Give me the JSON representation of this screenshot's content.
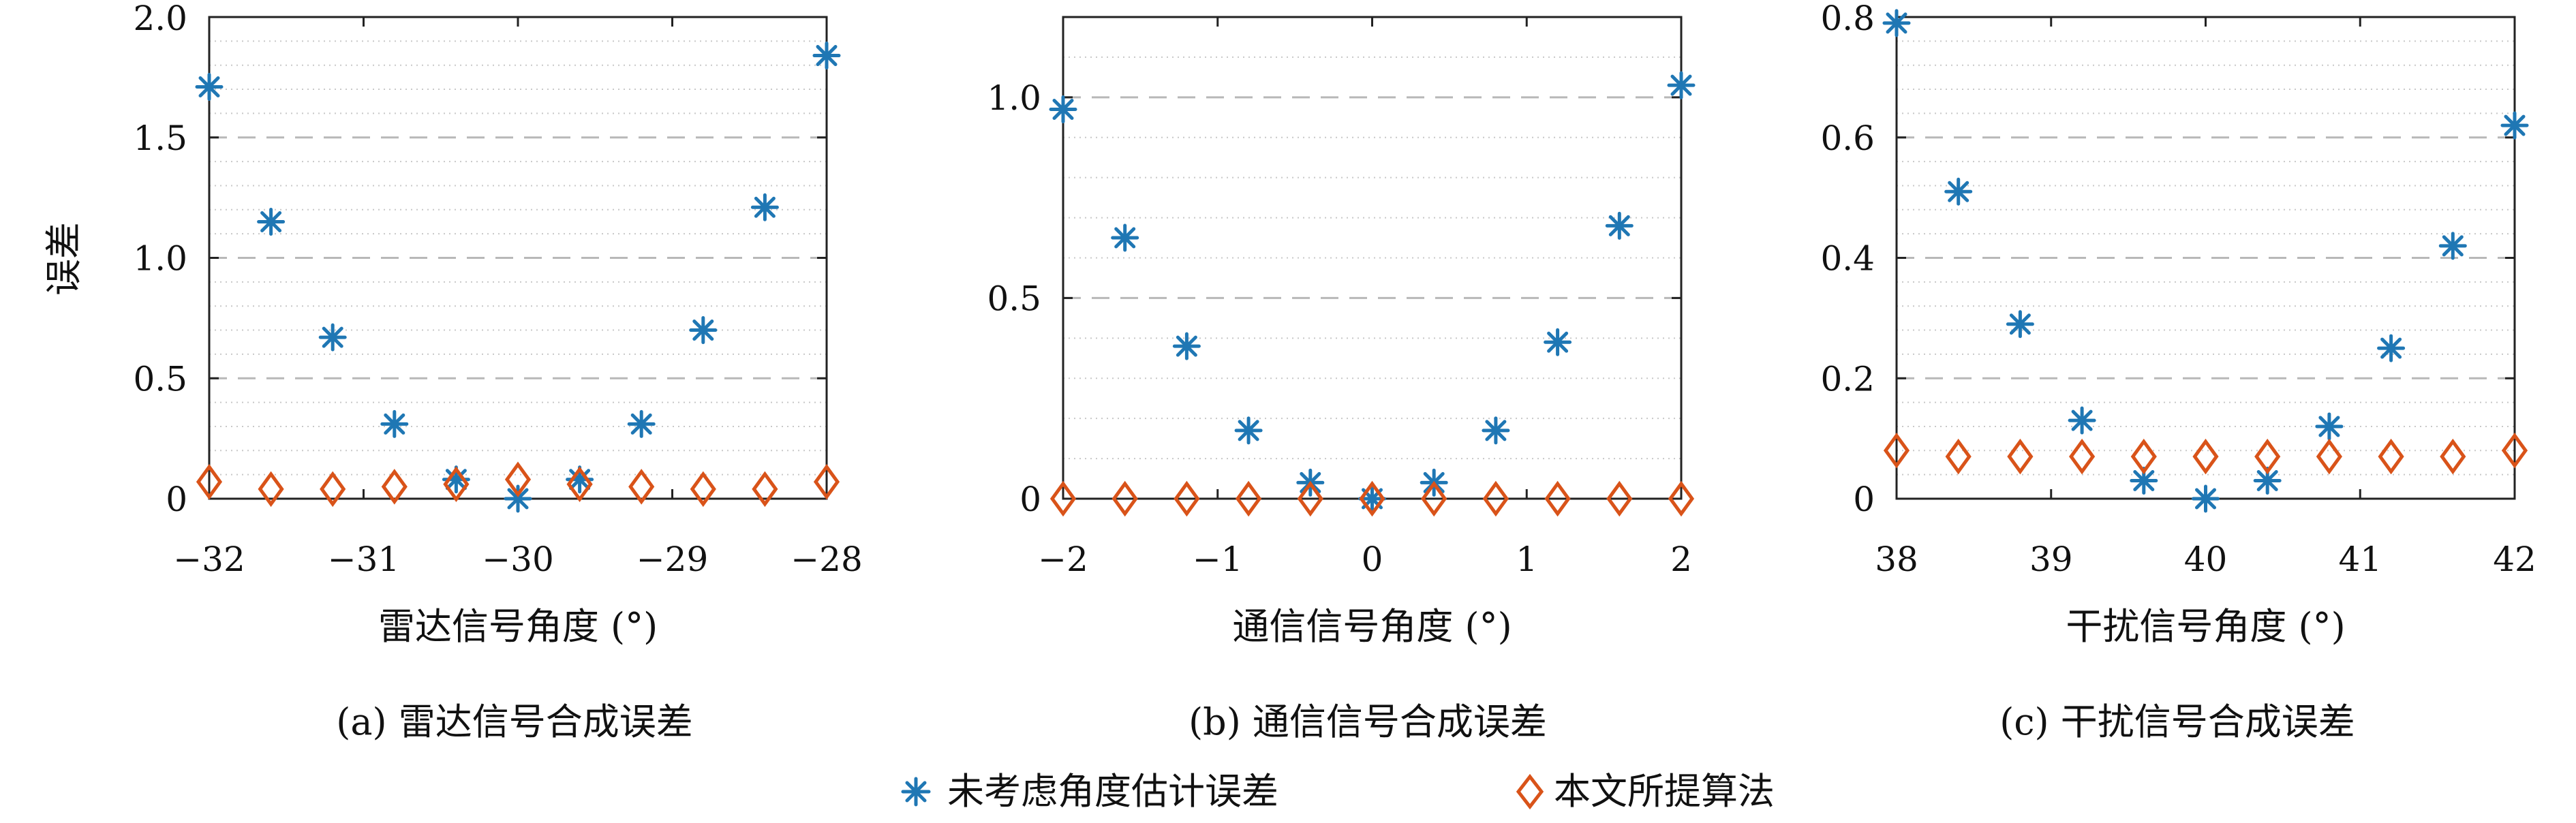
{
  "chart_data": [
    {
      "type": "scatter",
      "caption": "(a) 雷达信号合成误差",
      "xlabel": "雷达信号角度 (°)",
      "ylabel": "误差",
      "xlim": [
        -32,
        -28
      ],
      "ylim": [
        0,
        2.0
      ],
      "xticks": [
        -32,
        -31,
        -30,
        -29,
        -28
      ],
      "xtick_labels": [
        "−32",
        "−31",
        "−30",
        "−29",
        "−28"
      ],
      "yticks": [
        0,
        0.5,
        1.0,
        1.5,
        2.0
      ],
      "ytick_labels": [
        "0",
        "0.5",
        "1.0",
        "1.5",
        "2.0"
      ],
      "major_grid": [
        0.5,
        1.0,
        1.5
      ],
      "minor_grid_step": 0.1,
      "series": [
        {
          "name": "未考虑角度估计误差",
          "marker": "asterisk",
          "color": "#1f77b4",
          "x": [
            -32,
            -31.6,
            -31.2,
            -30.8,
            -30.4,
            -30,
            -29.6,
            -29.2,
            -28.8,
            -28.4,
            -28
          ],
          "y": [
            1.71,
            1.15,
            0.67,
            0.31,
            0.08,
            0.0,
            0.08,
            0.31,
            0.7,
            1.21,
            1.84
          ]
        },
        {
          "name": "本文所提算法",
          "marker": "diamond",
          "color": "#d95319",
          "x": [
            -32,
            -31.6,
            -31.2,
            -30.8,
            -30.4,
            -30,
            -29.6,
            -29.2,
            -28.8,
            -28.4,
            -28
          ],
          "y": [
            0.07,
            0.04,
            0.04,
            0.05,
            0.06,
            0.08,
            0.06,
            0.05,
            0.04,
            0.04,
            0.07
          ]
        }
      ]
    },
    {
      "type": "scatter",
      "caption": "(b) 通信信号合成误差",
      "xlabel": "通信信号角度 (°)",
      "ylabel": "",
      "xlim": [
        -2,
        2
      ],
      "ylim": [
        0,
        1.2
      ],
      "xticks": [
        -2,
        -1,
        0,
        1,
        2
      ],
      "xtick_labels": [
        "−2",
        "−1",
        "0",
        "1",
        "2"
      ],
      "yticks": [
        0,
        0.5,
        1.0
      ],
      "ytick_labels": [
        "0",
        "0.5",
        "1.0"
      ],
      "major_grid": [
        0.5,
        1.0
      ],
      "minor_grid_step": 0.1,
      "series": [
        {
          "name": "未考虑角度估计误差",
          "marker": "asterisk",
          "color": "#1f77b4",
          "x": [
            -2,
            -1.6,
            -1.2,
            -0.8,
            -0.4,
            0,
            0.4,
            0.8,
            1.2,
            1.6,
            2
          ],
          "y": [
            0.97,
            0.65,
            0.38,
            0.17,
            0.04,
            0.0,
            0.04,
            0.17,
            0.39,
            0.68,
            1.03
          ]
        },
        {
          "name": "本文所提算法",
          "marker": "diamond",
          "color": "#d95319",
          "x": [
            -2,
            -1.6,
            -1.2,
            -0.8,
            -0.4,
            0,
            0.4,
            0.8,
            1.2,
            1.6,
            2
          ],
          "y": [
            0.0,
            0.0,
            0.0,
            0.0,
            0.0,
            0.0,
            0.0,
            0.0,
            0.0,
            0.0,
            0.0
          ]
        }
      ]
    },
    {
      "type": "scatter",
      "caption": "(c) 干扰信号合成误差",
      "xlabel": "干扰信号角度 (°)",
      "ylabel": "",
      "xlim": [
        38,
        42
      ],
      "ylim": [
        0,
        0.8
      ],
      "xticks": [
        38,
        39,
        40,
        41,
        42
      ],
      "xtick_labels": [
        "38",
        "39",
        "40",
        "41",
        "42"
      ],
      "yticks": [
        0,
        0.2,
        0.4,
        0.6,
        0.8
      ],
      "ytick_labels": [
        "0",
        "0.2",
        "0.4",
        "0.6",
        "0.8"
      ],
      "major_grid": [
        0.2,
        0.4,
        0.6
      ],
      "minor_grid_step": 0.04,
      "series": [
        {
          "name": "未考虑角度估计误差",
          "marker": "asterisk",
          "color": "#1f77b4",
          "x": [
            38,
            38.4,
            38.8,
            39.2,
            39.6,
            40,
            40.4,
            40.8,
            41.2,
            41.6,
            42
          ],
          "y": [
            0.79,
            0.51,
            0.29,
            0.13,
            0.03,
            0.0,
            0.03,
            0.12,
            0.25,
            0.42,
            0.62
          ]
        },
        {
          "name": "本文所提算法",
          "marker": "diamond",
          "color": "#d95319",
          "x": [
            38,
            38.4,
            38.8,
            39.2,
            39.6,
            40,
            40.4,
            40.8,
            41.2,
            41.6,
            42
          ],
          "y": [
            0.08,
            0.07,
            0.07,
            0.07,
            0.07,
            0.07,
            0.07,
            0.07,
            0.07,
            0.07,
            0.08
          ]
        }
      ]
    }
  ],
  "legend": {
    "placement": "bottom-center",
    "items": [
      {
        "label": "未考虑角度估计误差",
        "marker": "asterisk",
        "color": "#1f77b4"
      },
      {
        "label": "本文所提算法",
        "marker": "diamond",
        "color": "#d95319"
      }
    ]
  }
}
